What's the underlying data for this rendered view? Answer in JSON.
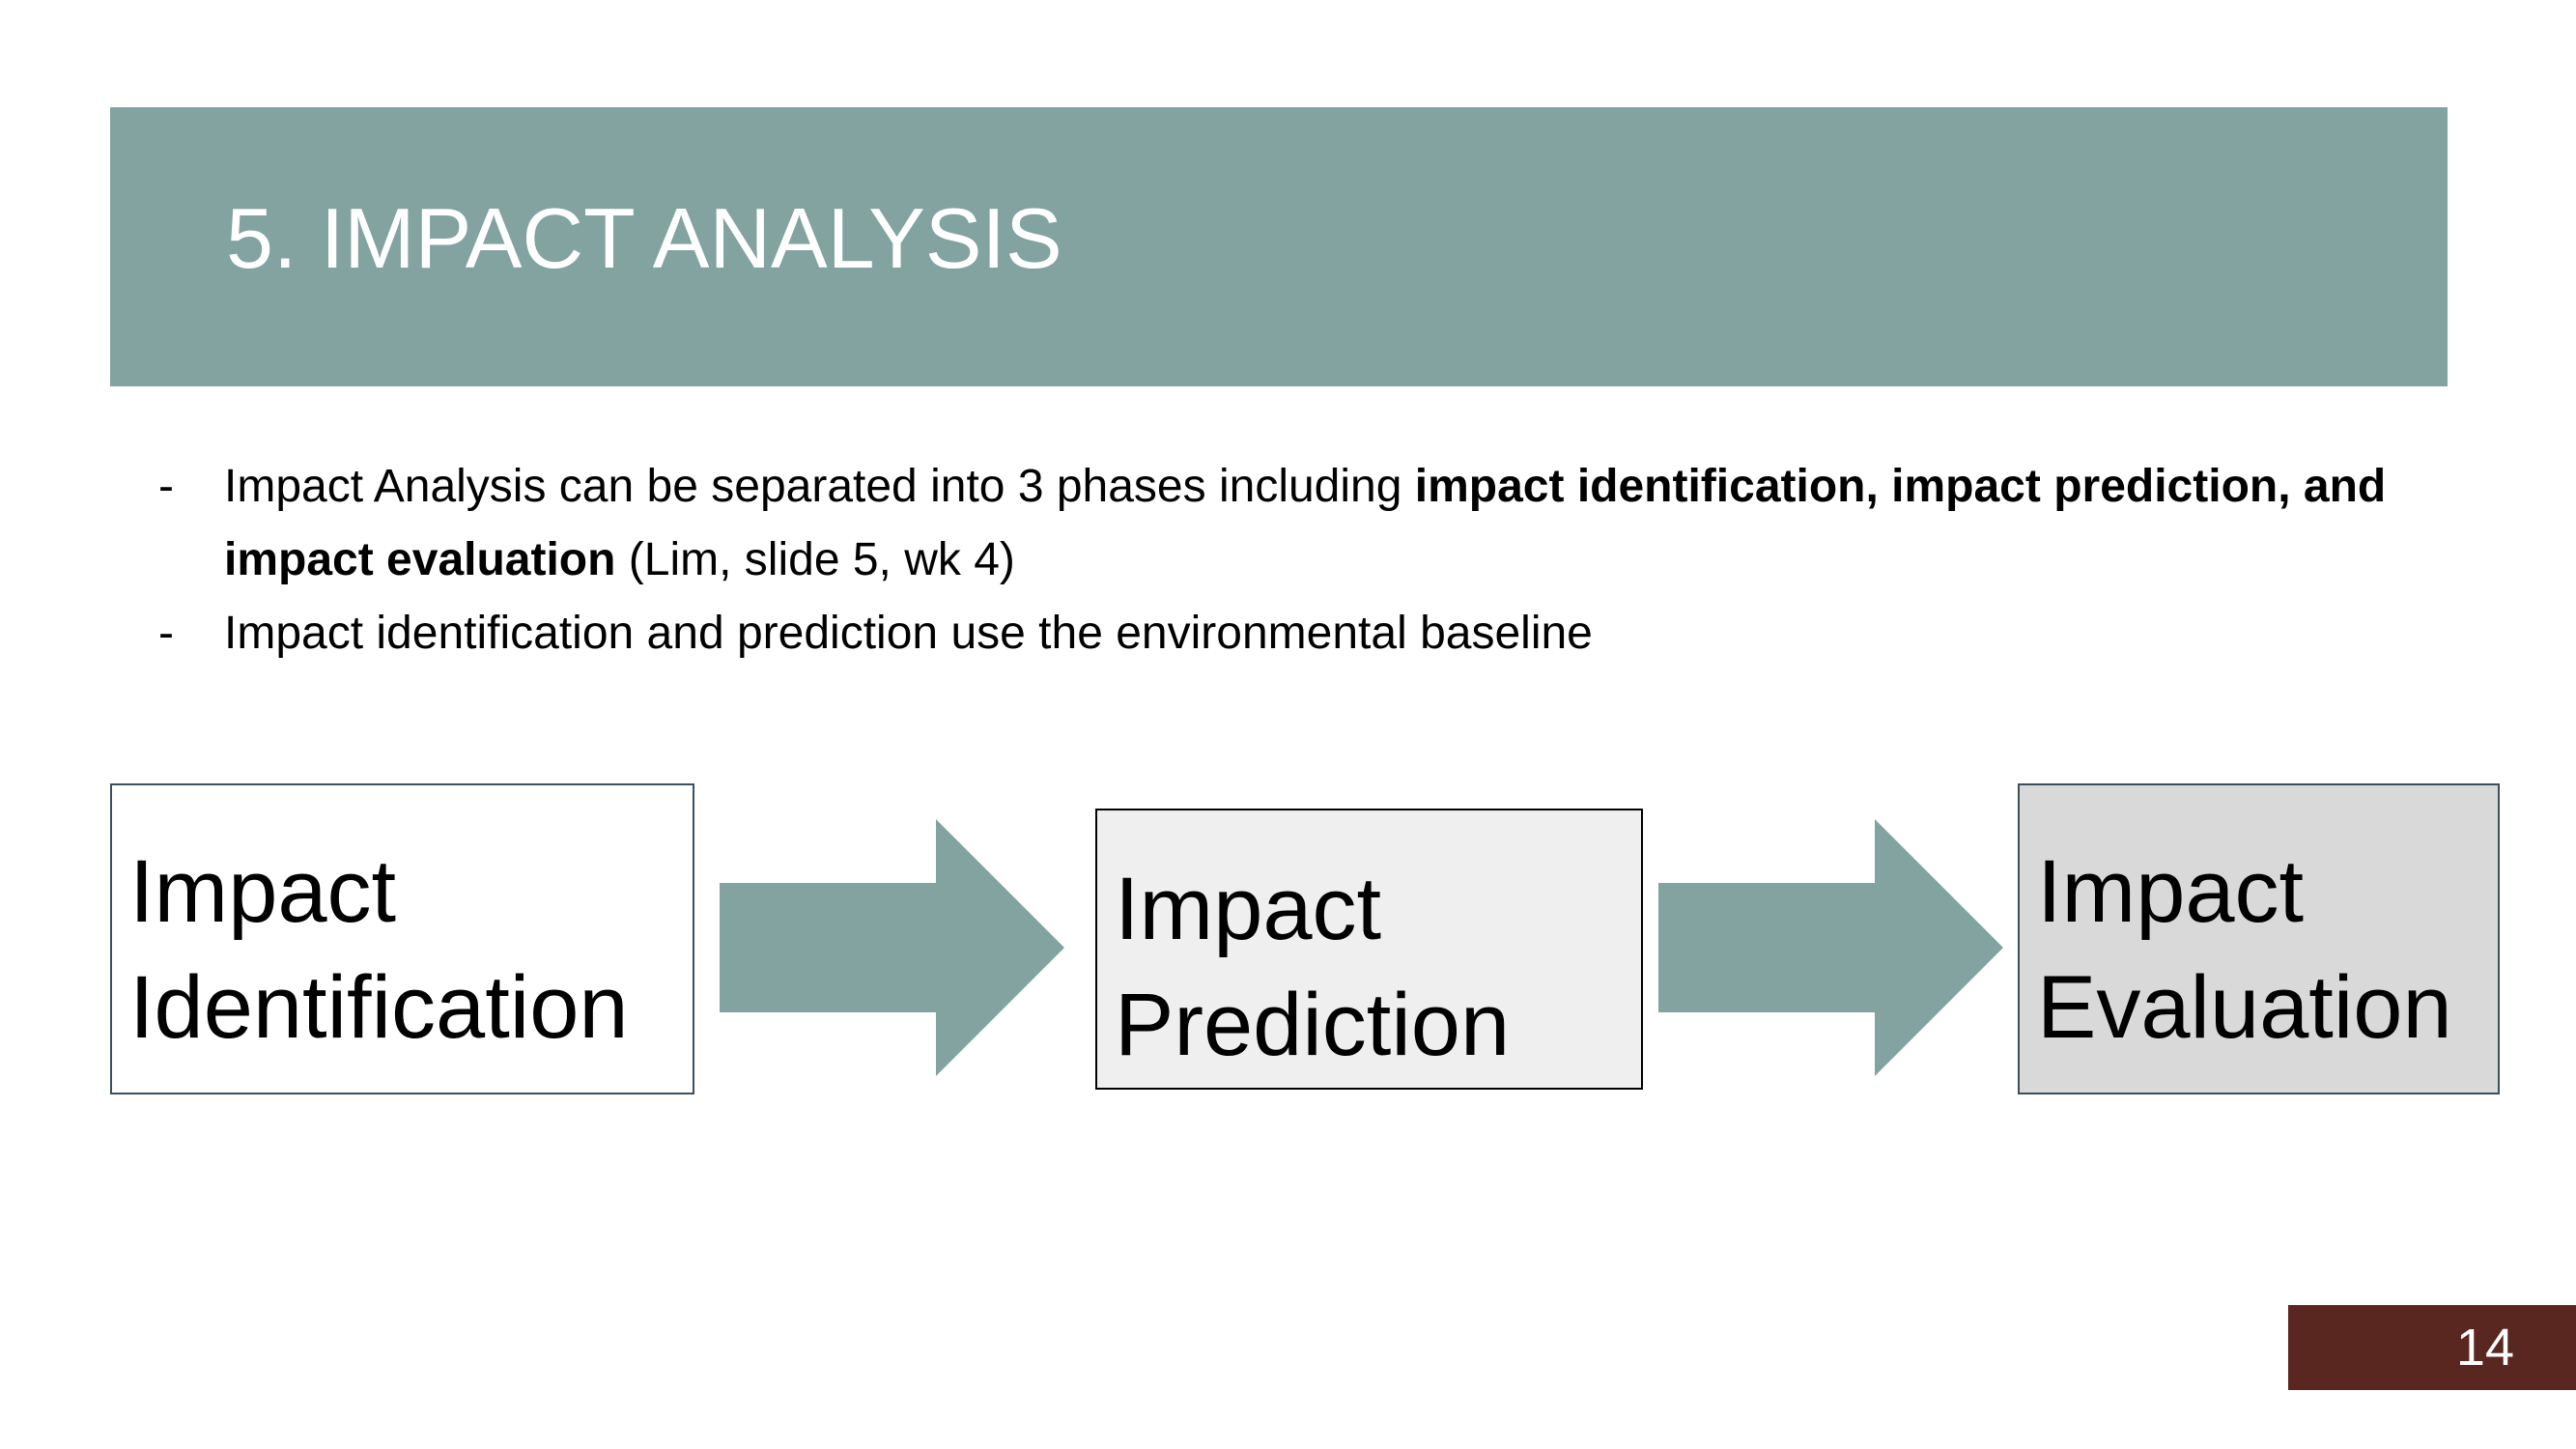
{
  "slide": {
    "title": "5. IMPACT ANALYSIS",
    "page_number": "14"
  },
  "bullets": [
    {
      "marker": "-",
      "text_before": "Impact Analysis can be separated into 3 phases including ",
      "text_bold": "impact identification, impact prediction, and impact evaluation",
      "text_after": " (Lim, slide 5, wk 4)"
    },
    {
      "marker": "-",
      "text": "Impact identification and prediction use the environmental baseline"
    }
  ],
  "diagram": {
    "boxes": [
      {
        "line1": "Impact",
        "line2": "Identification",
        "fill": "#ffffff"
      },
      {
        "line1": "Impact",
        "line2": "Prediction",
        "fill": "#efefef"
      },
      {
        "line1": "Impact",
        "line2": "Evaluation",
        "fill": "#d9d9d9"
      }
    ],
    "arrow_color": "#82a39f"
  },
  "colors": {
    "title_bar": "#82a39f",
    "page_badge": "#5a2720"
  }
}
